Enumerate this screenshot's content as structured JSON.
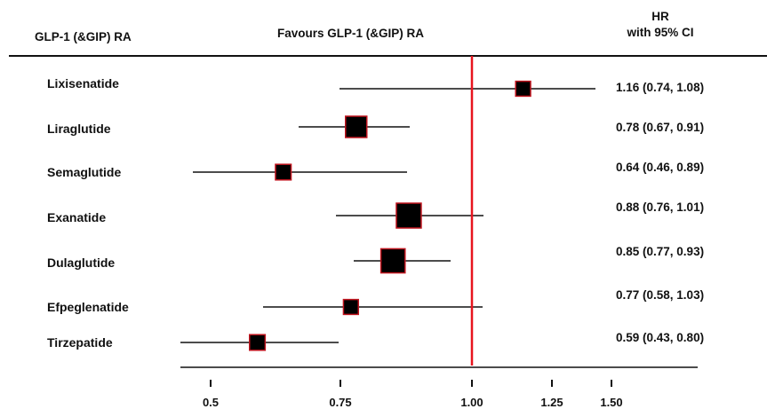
{
  "header": {
    "drug_column": "GLP-1 (&GIP) RA",
    "favours": "Favours GLP-1 (&GIP) RA",
    "hr_line1": "HR",
    "hr_line2": "with 95% CI"
  },
  "colors": {
    "reference_line": "#e8141e",
    "marker_fill": "#000000",
    "marker_border": "#c0141e",
    "ci_line": "#111111"
  },
  "chart_data": {
    "type": "forest",
    "title": "",
    "xlabel": "",
    "ylabel": "",
    "reference_value": 1.0,
    "xlim": [
      0.45,
      1.62
    ],
    "x_ticks": [
      0.5,
      0.75,
      1.0,
      1.25,
      1.5
    ],
    "x_tick_labels": [
      "0.5",
      "0.75",
      "1.00",
      "1.25",
      "1.50"
    ],
    "rows": [
      {
        "name": "Lixisenatide",
        "hr": 1.16,
        "lower": 0.74,
        "upper": 1.08,
        "label": "1.16 (0.74, 1.08)",
        "weight": 0.3
      },
      {
        "name": "Liraglutide",
        "hr": 0.78,
        "lower": 0.67,
        "upper": 0.91,
        "label": "0.78 (0.67, 0.91)",
        "weight": 0.75
      },
      {
        "name": "Semaglutide",
        "hr": 0.64,
        "lower": 0.46,
        "upper": 0.89,
        "label": "0.64 (0.46, 0.89)",
        "weight": 0.35
      },
      {
        "name": "Exanatide",
        "hr": 0.88,
        "lower": 0.76,
        "upper": 1.01,
        "label": "0.88 (0.76, 1.01)",
        "weight": 1.0
      },
      {
        "name": "Dulaglutide",
        "hr": 0.85,
        "lower": 0.77,
        "upper": 0.93,
        "label": "0.85 (0.77, 0.93)",
        "weight": 0.95
      },
      {
        "name": "Efpeglenatide",
        "hr": 0.77,
        "lower": 0.58,
        "upper": 1.03,
        "label": "0.77 (0.58, 1.03)",
        "weight": 0.3
      },
      {
        "name": "Tirzepatide",
        "hr": 0.59,
        "lower": 0.43,
        "upper": 0.8,
        "label": "0.59 (0.43, 0.80)",
        "weight": 0.35
      }
    ]
  }
}
